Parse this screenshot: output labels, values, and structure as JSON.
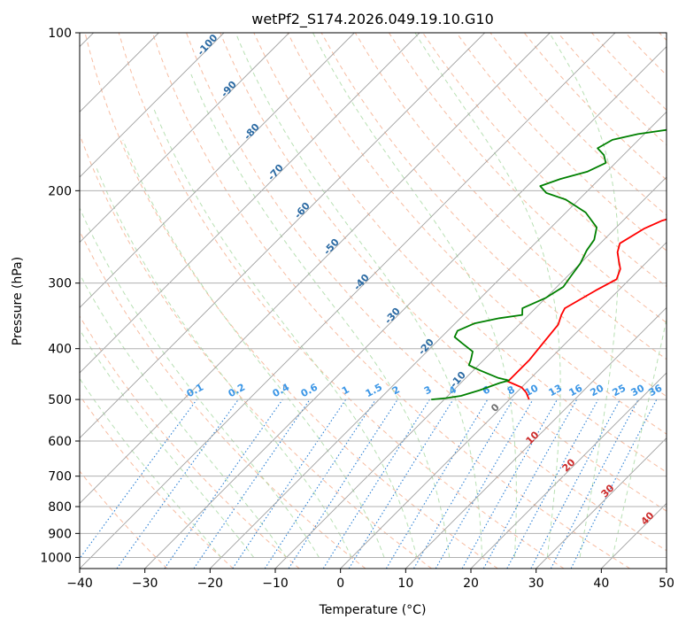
{
  "chart_data": {
    "type": "line",
    "title": "wetPf2_S174.2026.049.19.10.G10",
    "xlabel": "Temperature (°C)",
    "ylabel": "Pressure (hPa)",
    "xlim": [
      -40,
      50
    ],
    "ylim": [
      1050,
      100
    ],
    "y_scale": "log",
    "grid": true,
    "x_ticks": [
      -40,
      -30,
      -20,
      -10,
      0,
      10,
      20,
      30,
      40,
      50
    ],
    "y_ticks": [
      100,
      200,
      300,
      400,
      500,
      600,
      700,
      800,
      900,
      1000
    ],
    "x_tick_labels": [
      "−40",
      "−30",
      "−20",
      "−10",
      "0",
      "10",
      "20",
      "30",
      "40",
      "50"
    ],
    "y_tick_labels": [
      "100",
      "200",
      "300",
      "400",
      "500",
      "600",
      "700",
      "800",
      "900",
      "1000"
    ],
    "series": [
      {
        "color": "#ff0000",
        "points": [
          [
            3,
            500
          ],
          [
            1.5,
            485
          ],
          [
            0,
            474
          ],
          [
            -2,
            466
          ],
          [
            -3,
            462
          ],
          [
            -3,
            420
          ],
          [
            -3.5,
            390
          ],
          [
            -4,
            360
          ],
          [
            -5,
            345
          ],
          [
            -5.5,
            335
          ],
          [
            -3.5,
            310
          ],
          [
            -2,
            295
          ],
          [
            -3,
            282
          ],
          [
            -4.5,
            272
          ],
          [
            -6,
            262
          ],
          [
            -7,
            252
          ],
          [
            -5.5,
            236
          ],
          [
            -4,
            228
          ],
          [
            0,
            218
          ],
          [
            3,
            209
          ],
          [
            6,
            198
          ],
          [
            8,
            185
          ],
          [
            10,
            172
          ],
          [
            13,
            163
          ],
          [
            16,
            153
          ],
          [
            18,
            143
          ],
          [
            20,
            134
          ],
          [
            21,
            126
          ],
          [
            23,
            118
          ],
          [
            24.5,
            112
          ],
          [
            26,
            104
          ],
          [
            27,
            100
          ]
        ]
      },
      {
        "color": "#008000",
        "points": [
          [
            -12,
            500
          ],
          [
            -10,
            497
          ],
          [
            -8,
            492
          ],
          [
            -6,
            480
          ],
          [
            -4,
            465
          ],
          [
            -3,
            460
          ],
          [
            -5,
            455
          ],
          [
            -9,
            440
          ],
          [
            -11.5,
            430
          ],
          [
            -12,
            420
          ],
          [
            -13,
            405
          ],
          [
            -16,
            390
          ],
          [
            -18,
            380
          ],
          [
            -18.5,
            370
          ],
          [
            -17,
            358
          ],
          [
            -14,
            350
          ],
          [
            -11,
            345
          ],
          [
            -12,
            335
          ],
          [
            -10,
            320
          ],
          [
            -9,
            305
          ],
          [
            -9.5,
            290
          ],
          [
            -10,
            275
          ],
          [
            -11,
            260
          ],
          [
            -11.5,
            248
          ],
          [
            -13,
            235
          ],
          [
            -17,
            220
          ],
          [
            -22,
            208
          ],
          [
            -26,
            202
          ],
          [
            -28,
            196
          ],
          [
            -26,
            190
          ],
          [
            -23,
            184
          ],
          [
            -21.5,
            177
          ],
          [
            -23,
            171
          ],
          [
            -25,
            166
          ],
          [
            -24,
            160
          ],
          [
            -21,
            156
          ],
          [
            -17,
            153
          ],
          [
            -14,
            146
          ],
          [
            -10,
            138
          ],
          [
            -7,
            130
          ],
          [
            -5,
            122
          ],
          [
            -3,
            114
          ],
          [
            0,
            106
          ],
          [
            3,
            100
          ]
        ]
      }
    ],
    "dry_adiabat_labels": [
      "-100",
      "-90",
      "-80",
      "-70",
      "-60",
      "-50",
      "-40",
      "-30",
      "-20",
      "-10"
    ],
    "mixing_ratio_labels": [
      "0.1",
      "0.2",
      "0.4",
      "0.6",
      "1",
      "1.5",
      "2",
      "3",
      "4",
      "6",
      "8",
      "10",
      "13",
      "16",
      "20",
      "25",
      "30",
      "36"
    ],
    "moist_adiabat_labels": [
      "0",
      "10",
      "20",
      "30",
      "40"
    ]
  }
}
